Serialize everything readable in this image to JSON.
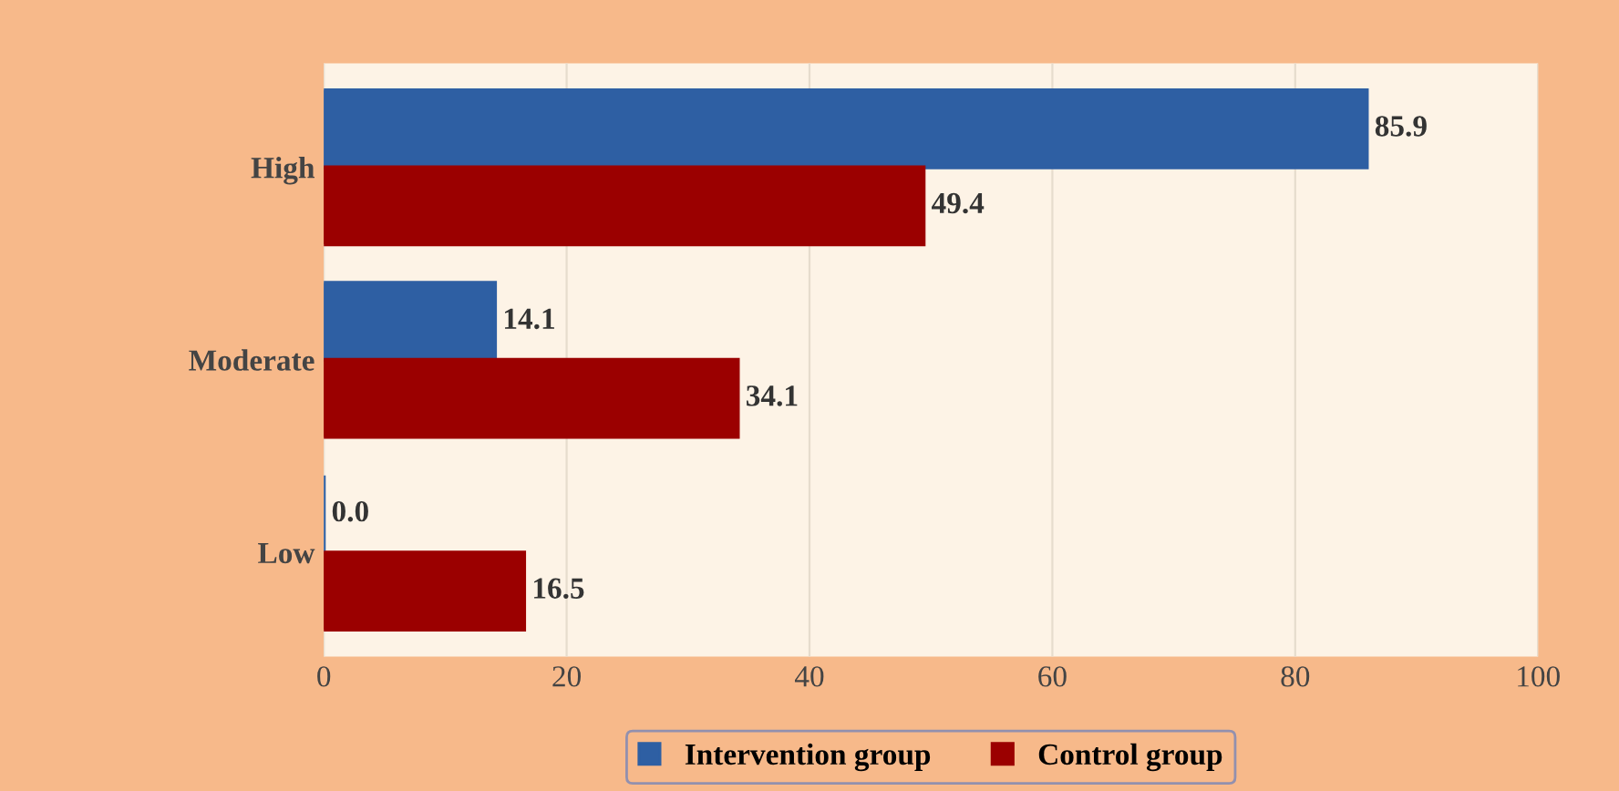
{
  "chart_data": {
    "type": "bar",
    "orientation": "horizontal",
    "categories": [
      "High",
      "Moderate",
      "Low"
    ],
    "series": [
      {
        "name": "Intervention group",
        "color": "#2e5fa3",
        "values": [
          85.9,
          14.1,
          0.0
        ],
        "value_labels": [
          "85.9",
          "14.1",
          "0.0"
        ]
      },
      {
        "name": "Control group",
        "color": "#9b0000",
        "values": [
          49.4,
          34.1,
          16.5
        ],
        "value_labels": [
          "49.4",
          "34.1",
          "16.5"
        ]
      }
    ],
    "xlim": [
      0,
      100
    ],
    "xticks": [
      0,
      20,
      40,
      60,
      80,
      100
    ],
    "grid": "x",
    "legend": "bottom"
  }
}
